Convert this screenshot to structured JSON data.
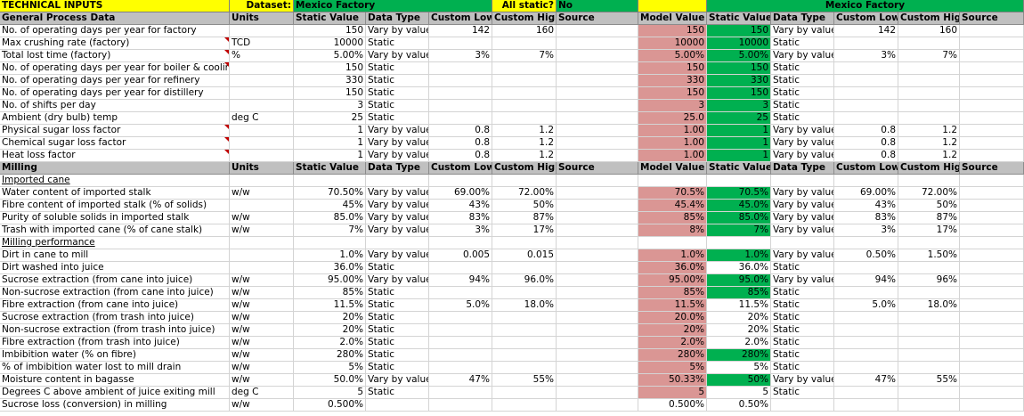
{
  "banner": {
    "title": "TECHNICAL INPUTS",
    "dataset_label": "Dataset:",
    "dataset_value": "Mexico Factory",
    "allstatic_label": "All static?",
    "allstatic_value": "No",
    "right_title": "Mexico Factory"
  },
  "colors": {
    "yellow": "#ffff00",
    "green": "#00b050",
    "header_gray": "#c0c0c0",
    "red_cell": "#da9694",
    "green_cell": "#00b050",
    "grid": "#d4d4d4",
    "comment_flag": "#c00000"
  },
  "sections": [
    {
      "header": [
        "General Process Data",
        "Units",
        "Static Value",
        "Data Type",
        "Custom Low",
        "Custom High",
        "Source",
        "Model Value",
        "Static Value",
        "Data Type",
        "Custom Low",
        "Custom High",
        "Source"
      ],
      "rows": [
        {
          "cells": [
            "No. of operating days per year for factory",
            "",
            "150",
            "Vary by value",
            "142",
            "160",
            "",
            "150",
            "150",
            "Vary by value",
            "142",
            "160",
            ""
          ],
          "model": "red",
          "st": "green"
        },
        {
          "cells": [
            "Max crushing rate (factory)",
            "TCD",
            "10000",
            "Static",
            "",
            "",
            "",
            "10000",
            "10000",
            "Static",
            "",
            "",
            ""
          ],
          "model": "red",
          "st": "green",
          "flag": true
        },
        {
          "cells": [
            "Total lost time (factory)",
            "%",
            "5.00%",
            "Vary by value",
            "3%",
            "7%",
            "",
            "5.00%",
            "5.00%",
            "Vary by value",
            "3%",
            "7%",
            ""
          ],
          "model": "red",
          "st": "green",
          "flag": true
        },
        {
          "cells": [
            "No. of operating days per year for boiler & cooling",
            "",
            "150",
            "Static",
            "",
            "",
            "",
            "150",
            "150",
            "Static",
            "",
            "",
            ""
          ],
          "model": "red",
          "st": "green",
          "flag": true
        },
        {
          "cells": [
            "No. of operating days per year for refinery",
            "",
            "330",
            "Static",
            "",
            "",
            "",
            "330",
            "330",
            "Static",
            "",
            "",
            ""
          ],
          "model": "red",
          "st": "green"
        },
        {
          "cells": [
            "No. of operating days per year for distillery",
            "",
            "150",
            "Static",
            "",
            "",
            "",
            "150",
            "150",
            "Static",
            "",
            "",
            ""
          ],
          "model": "red",
          "st": "green"
        },
        {
          "cells": [
            "No. of shifts per day",
            "",
            "3",
            "Static",
            "",
            "",
            "",
            "3",
            "3",
            "Static",
            "",
            "",
            ""
          ],
          "model": "red",
          "st": "green"
        },
        {
          "cells": [
            "Ambient (dry bulb) temp",
            "deg C",
            "25",
            "Static",
            "",
            "",
            "",
            "25.0",
            "25",
            "Static",
            "",
            "",
            ""
          ],
          "model": "red",
          "st": "green"
        },
        {
          "cells": [
            "Physical sugar loss factor",
            "",
            "1",
            "Vary by value",
            "0.8",
            "1.2",
            "",
            "1.00",
            "1",
            "Vary by value",
            "0.8",
            "1.2",
            ""
          ],
          "model": "red",
          "st": "green",
          "flag": true
        },
        {
          "cells": [
            "Chemical sugar loss factor",
            "",
            "1",
            "Vary by value",
            "0.8",
            "1.2",
            "",
            "1.00",
            "1",
            "Vary by value",
            "0.8",
            "1.2",
            ""
          ],
          "model": "red",
          "st": "green",
          "flag": true
        },
        {
          "cells": [
            "Heat loss factor",
            "",
            "1",
            "Vary by value",
            "0.8",
            "1.2",
            "",
            "1.00",
            "1",
            "Vary by value",
            "0.8",
            "1.2",
            ""
          ],
          "model": "red",
          "st": "green",
          "flag": true
        }
      ]
    },
    {
      "header": [
        "Milling",
        "Units",
        "Static Value",
        "Data Type",
        "Custom Low",
        "Custom High",
        "Source",
        "Model Value",
        "Static Value",
        "Data Type",
        "Custom Low",
        "Custom High",
        "Source"
      ],
      "rows": [
        {
          "sub": "Imported cane"
        },
        {
          "cells": [
            "Water content of  imported stalk",
            "w/w",
            "70.50%",
            "Vary by value",
            "69.00%",
            "72.00%",
            "",
            "70.5%",
            "70.5%",
            "Vary by value",
            "69.00%",
            "72.00%",
            ""
          ],
          "model": "red",
          "st": "green"
        },
        {
          "cells": [
            "Fibre content of imported stalk (% of solids)",
            "",
            "45%",
            "Vary by value",
            "43%",
            "50%",
            "",
            "45.4%",
            "45.0%",
            "Vary by value",
            "43%",
            "50%",
            ""
          ],
          "model": "red",
          "st": "green"
        },
        {
          "cells": [
            "Purity of soluble solids in imported stalk",
            "w/w",
            "85.0%",
            "Vary by value",
            "83%",
            "87%",
            "",
            "85%",
            "85.0%",
            "Vary by value",
            "83%",
            "87%",
            ""
          ],
          "model": "red",
          "st": "green"
        },
        {
          "cells": [
            "Trash with imported cane (% of cane stalk)",
            "w/w",
            "7%",
            "Vary by value",
            "3%",
            "17%",
            "",
            "8%",
            "7%",
            "Vary by value",
            "3%",
            "17%",
            ""
          ],
          "model": "red",
          "st": "green"
        },
        {
          "sub": "Milling performance"
        },
        {
          "cells": [
            "Dirt in cane to mill",
            "",
            "1.0%",
            "Vary by value",
            "0.005",
            "0.015",
            "",
            "1.0%",
            "1.0%",
            "Vary by value",
            "0.50%",
            "1.50%",
            ""
          ],
          "model": "red",
          "st": "green"
        },
        {
          "cells": [
            "Dirt washed into juice",
            "",
            "36.0%",
            "Static",
            "",
            "",
            "",
            "36.0%",
            "36.0%",
            "Static",
            "",
            "",
            ""
          ],
          "model": "red",
          "st": ""
        },
        {
          "cells": [
            "Sucrose extraction (from cane into juice)",
            "w/w",
            "95.00%",
            "Vary by value",
            "94%",
            "96.0%",
            "",
            "95.00%",
            "95.0%",
            "Vary by value",
            "94%",
            "96%",
            ""
          ],
          "model": "red",
          "st": "green"
        },
        {
          "cells": [
            "Non-sucrose extraction (from cane into juice)",
            "w/w",
            "85%",
            "Static",
            "",
            "",
            "",
            "85%",
            "85%",
            "Static",
            "",
            "",
            ""
          ],
          "model": "red",
          "st": "green"
        },
        {
          "cells": [
            "Fibre extraction (from cane into juice)",
            "w/w",
            "11.5%",
            "Static",
            "5.0%",
            "18.0%",
            "",
            "11.5%",
            "11.5%",
            "Static",
            "5.0%",
            "18.0%",
            ""
          ],
          "model": "red",
          "st": ""
        },
        {
          "cells": [
            "Sucrose extraction (from trash into juice)",
            "w/w",
            "20%",
            "Static",
            "",
            "",
            "",
            "20.0%",
            "20%",
            "Static",
            "",
            "",
            ""
          ],
          "model": "red",
          "st": ""
        },
        {
          "cells": [
            "Non-sucrose extraction (from trash into juice)",
            "w/w",
            "20%",
            "Static",
            "",
            "",
            "",
            "20%",
            "20%",
            "Static",
            "",
            "",
            ""
          ],
          "model": "red",
          "st": ""
        },
        {
          "cells": [
            "Fibre extraction (from trash into juice)",
            "w/w",
            "2.0%",
            "Static",
            "",
            "",
            "",
            "2.0%",
            "2.0%",
            "Static",
            "",
            "",
            ""
          ],
          "model": "red",
          "st": ""
        },
        {
          "cells": [
            "Imbibition water (% on fibre)",
            "w/w",
            "280%",
            "Static",
            "",
            "",
            "",
            "280%",
            "280%",
            "Static",
            "",
            "",
            ""
          ],
          "model": "red",
          "st": "green"
        },
        {
          "cells": [
            "% of imbibition water lost to mill drain",
            "w/w",
            "5%",
            "Static",
            "",
            "",
            "",
            "5%",
            "5%",
            "Static",
            "",
            "",
            ""
          ],
          "model": "red",
          "st": ""
        },
        {
          "cells": [
            "Moisture content in bagasse",
            "w/w",
            "50.0%",
            "Vary by value",
            "47%",
            "55%",
            "",
            "50.33%",
            "50%",
            "Vary by value",
            "47%",
            "55%",
            ""
          ],
          "model": "red",
          "st": "green"
        },
        {
          "cells": [
            "Degrees C above ambient of juice exiting mill",
            "deg C",
            "5",
            "Static",
            "",
            "",
            "",
            "5",
            "5",
            "Static",
            "",
            "",
            ""
          ],
          "model": "red",
          "st": ""
        },
        {
          "cells": [
            "Sucrose loss (conversion) in milling",
            "w/w",
            "0.500%",
            "",
            "",
            "",
            "",
            "0.500%",
            "0.50%",
            "",
            "",
            "",
            ""
          ],
          "model": "",
          "st": ""
        }
      ]
    }
  ]
}
